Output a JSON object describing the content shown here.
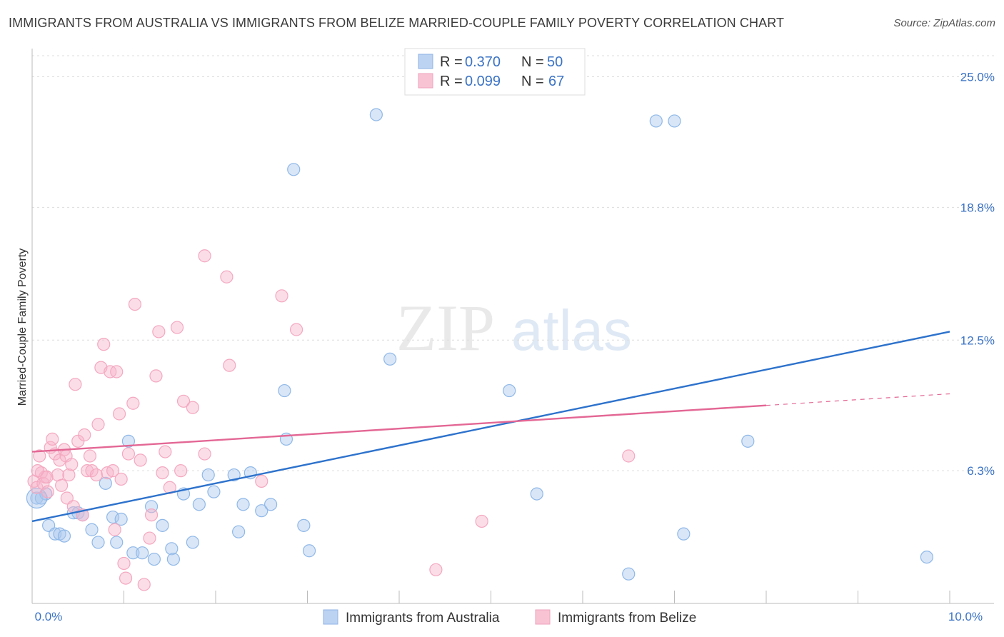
{
  "title": "IMMIGRANTS FROM AUSTRALIA VS IMMIGRANTS FROM BELIZE MARRIED-COUPLE FAMILY POVERTY CORRELATION CHART",
  "source": "Source: ZipAtlas.com",
  "watermark": {
    "zip": "ZIP",
    "atlas": "atlas"
  },
  "chart_data": {
    "type": "scatter",
    "xlabel": "",
    "ylabel": "Married-Couple Family Poverty",
    "xlim": [
      0,
      10
    ],
    "ylim": [
      0,
      26
    ],
    "x_tick_labels": [
      "0.0%",
      "10.0%"
    ],
    "y_ticks": [
      6.3,
      12.5,
      18.8,
      25.0
    ],
    "y_tick_labels": [
      "6.3%",
      "12.5%",
      "18.8%",
      "25.0%"
    ],
    "legend": [
      {
        "label_r": "R = ",
        "r": "0.370",
        "label_n": "N = ",
        "n": "50"
      },
      {
        "label_r": "R = ",
        "r": "0.099",
        "label_n": "N = ",
        "n": "67"
      }
    ],
    "series": [
      {
        "name": "Immigrants from Australia",
        "color": "#8fb8e8",
        "line_color": "#2d72cc",
        "trend": {
          "x0": 0,
          "y0": 3.9,
          "x1": 10,
          "y1": 12.9
        },
        "points": [
          [
            0.05,
            5.0
          ],
          [
            0.1,
            5.0
          ],
          [
            0.15,
            5.2
          ],
          [
            0.18,
            3.7
          ],
          [
            0.25,
            3.3
          ],
          [
            0.3,
            3.3
          ],
          [
            0.35,
            3.2
          ],
          [
            0.45,
            4.3
          ],
          [
            0.5,
            4.3
          ],
          [
            0.55,
            4.2
          ],
          [
            0.65,
            3.5
          ],
          [
            0.72,
            2.9
          ],
          [
            0.8,
            5.7
          ],
          [
            0.88,
            4.1
          ],
          [
            0.92,
            2.9
          ],
          [
            0.97,
            4.0
          ],
          [
            1.05,
            7.7
          ],
          [
            1.1,
            2.4
          ],
          [
            1.2,
            2.4
          ],
          [
            1.3,
            4.6
          ],
          [
            1.33,
            2.1
          ],
          [
            1.42,
            3.7
          ],
          [
            1.52,
            2.6
          ],
          [
            1.54,
            2.1
          ],
          [
            1.65,
            5.2
          ],
          [
            1.75,
            2.9
          ],
          [
            1.82,
            4.7
          ],
          [
            1.92,
            6.1
          ],
          [
            1.98,
            5.3
          ],
          [
            2.2,
            6.1
          ],
          [
            2.25,
            3.4
          ],
          [
            2.3,
            4.7
          ],
          [
            2.38,
            6.2
          ],
          [
            2.5,
            4.4
          ],
          [
            2.6,
            4.7
          ],
          [
            2.75,
            10.1
          ],
          [
            2.77,
            7.8
          ],
          [
            2.85,
            20.6
          ],
          [
            2.96,
            3.7
          ],
          [
            3.02,
            2.5
          ],
          [
            3.75,
            23.2
          ],
          [
            3.9,
            11.6
          ],
          [
            5.2,
            10.1
          ],
          [
            5.5,
            5.2
          ],
          [
            6.8,
            22.9
          ],
          [
            6.5,
            1.4
          ],
          [
            7.0,
            22.9
          ],
          [
            7.1,
            3.3
          ],
          [
            7.8,
            7.7
          ],
          [
            9.75,
            2.2
          ]
        ]
      },
      {
        "name": "Immigrants from Belize",
        "color": "#f4a8c0",
        "line_color": "#e36794",
        "trend": {
          "x0": 0,
          "y0": 7.2,
          "x1": 8.0,
          "y1": 9.4,
          "x2": 10,
          "y2": 9.95
        },
        "points": [
          [
            0.02,
            5.8
          ],
          [
            0.05,
            5.5
          ],
          [
            0.08,
            7.0
          ],
          [
            0.1,
            6.2
          ],
          [
            0.12,
            5.7
          ],
          [
            0.14,
            6.0
          ],
          [
            0.17,
            5.3
          ],
          [
            0.2,
            7.4
          ],
          [
            0.22,
            7.8
          ],
          [
            0.25,
            7.1
          ],
          [
            0.28,
            6.1
          ],
          [
            0.3,
            6.8
          ],
          [
            0.32,
            5.6
          ],
          [
            0.35,
            7.3
          ],
          [
            0.37,
            7.0
          ],
          [
            0.38,
            5.0
          ],
          [
            0.4,
            6.1
          ],
          [
            0.43,
            6.6
          ],
          [
            0.45,
            4.6
          ],
          [
            0.47,
            10.4
          ],
          [
            0.5,
            7.7
          ],
          [
            0.55,
            4.2
          ],
          [
            0.57,
            8.0
          ],
          [
            0.6,
            6.3
          ],
          [
            0.63,
            7.0
          ],
          [
            0.65,
            6.3
          ],
          [
            0.7,
            6.1
          ],
          [
            0.72,
            8.5
          ],
          [
            0.75,
            11.2
          ],
          [
            0.78,
            12.3
          ],
          [
            0.82,
            6.2
          ],
          [
            0.85,
            11.0
          ],
          [
            0.88,
            6.3
          ],
          [
            0.9,
            3.5
          ],
          [
            0.92,
            11.0
          ],
          [
            0.95,
            9.0
          ],
          [
            0.97,
            5.9
          ],
          [
            1.0,
            1.9
          ],
          [
            1.02,
            1.2
          ],
          [
            1.05,
            7.1
          ],
          [
            1.1,
            9.5
          ],
          [
            1.12,
            14.2
          ],
          [
            1.18,
            6.8
          ],
          [
            1.22,
            0.9
          ],
          [
            1.28,
            3.1
          ],
          [
            1.3,
            4.2
          ],
          [
            1.35,
            10.8
          ],
          [
            1.38,
            12.9
          ],
          [
            1.42,
            6.2
          ],
          [
            1.45,
            7.2
          ],
          [
            1.5,
            5.5
          ],
          [
            1.58,
            13.1
          ],
          [
            1.62,
            6.3
          ],
          [
            1.65,
            9.6
          ],
          [
            1.75,
            9.3
          ],
          [
            1.88,
            16.5
          ],
          [
            1.88,
            7.1
          ],
          [
            2.12,
            15.5
          ],
          [
            2.15,
            11.3
          ],
          [
            2.5,
            5.8
          ],
          [
            2.72,
            14.6
          ],
          [
            2.88,
            13.0
          ],
          [
            4.4,
            1.6
          ],
          [
            4.9,
            3.9
          ],
          [
            6.5,
            7.0
          ],
          [
            0.06,
            6.3
          ],
          [
            0.16,
            6.0
          ]
        ]
      }
    ]
  }
}
